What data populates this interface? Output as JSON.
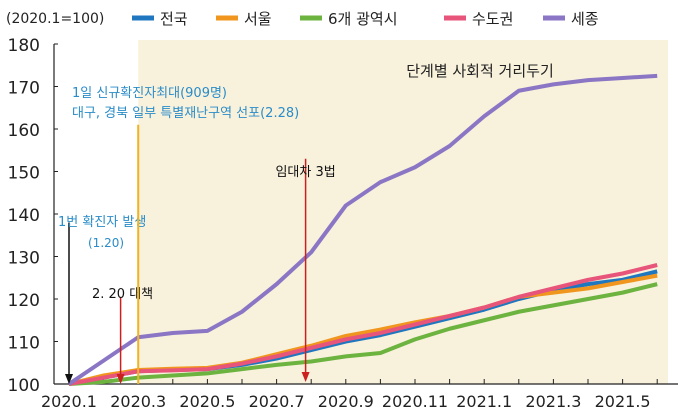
{
  "chart_data": {
    "type": "line",
    "unit_label": "(2020.1=100)",
    "x": [
      "2020.1",
      "2020.2",
      "2020.3",
      "2020.4",
      "2020.5",
      "2020.6",
      "2020.7",
      "2020.8",
      "2020.9",
      "2020.10",
      "2020.11",
      "2020.12",
      "2021.1",
      "2021.2",
      "2021.3",
      "2021.4",
      "2021.5",
      "2021.6"
    ],
    "x_tick_labels": [
      "2020.1",
      "2020.3",
      "2020.5",
      "2020.7",
      "2020.9",
      "2020.11",
      "2021.1",
      "2021.3",
      "2021.5"
    ],
    "y_ticks": [
      100,
      110,
      120,
      130,
      140,
      150,
      160,
      170,
      180
    ],
    "ylim": [
      100,
      180
    ],
    "legend_position": "top",
    "series": [
      {
        "name": "전국",
        "color": "#1f77c0",
        "values": [
          100,
          101.5,
          103,
          103.3,
          103.5,
          104.5,
          106,
          108,
          110,
          111.5,
          113.5,
          115.5,
          117.5,
          120,
          122,
          123.5,
          124.5,
          126.5
        ]
      },
      {
        "name": "서울",
        "color": "#f0961e",
        "values": [
          100,
          102,
          103.3,
          103.6,
          103.8,
          105,
          107,
          109,
          111.3,
          112.8,
          114.5,
          116,
          118,
          120.5,
          121.5,
          122.5,
          124,
          125.5
        ]
      },
      {
        "name": "6개 광역시",
        "color": "#6cb33f",
        "values": [
          100,
          100.5,
          101.5,
          102,
          102.5,
          103.5,
          104.5,
          105.3,
          106.5,
          107.3,
          110.5,
          113,
          115,
          117,
          118.5,
          120,
          121.5,
          123.5
        ]
      },
      {
        "name": "수도권",
        "color": "#e8557a",
        "values": [
          100,
          101.5,
          103,
          103.2,
          103.5,
          104.8,
          106.5,
          108.5,
          110.5,
          112,
          114,
          116,
          118,
          120.5,
          122.5,
          124.5,
          126,
          128
        ]
      },
      {
        "name": "세종",
        "color": "#8a76c4",
        "values": [
          100,
          105.5,
          111,
          112,
          112.5,
          117,
          123.5,
          131,
          142,
          147.5,
          151,
          156,
          163,
          169,
          170.5,
          171.5,
          172,
          172.5
        ]
      }
    ],
    "shaded_region": {
      "label": "단계별 사회적 거리두기",
      "from": "2020.3",
      "to": "2021.6",
      "color": "#f8f1dc"
    },
    "annotations": [
      {
        "id": "first-case",
        "lines": [
          "1번 확진자 발생",
          "(1.20)"
        ],
        "color": "#2a8cc8",
        "x": "2020.1",
        "arrow_color": "#111111"
      },
      {
        "id": "policy-220",
        "lines": [
          "2. 20 대책"
        ],
        "color": "#111111",
        "x": "2020.2.20",
        "arrow_color": "#cc1f1f"
      },
      {
        "id": "peak-cases",
        "lines": [
          "1일 신규확진자최대(909명)",
          "대구, 경북 일부 특별재난구역 선포(2.28)"
        ],
        "color": "#2a8cc8",
        "x": "2020.3",
        "line_color": "#f0b41e"
      },
      {
        "id": "rent-law",
        "lines": [
          "임대차 3법"
        ],
        "color": "#111111",
        "x": "2020.7.31",
        "arrow_color": "#cc1f1f"
      }
    ]
  }
}
